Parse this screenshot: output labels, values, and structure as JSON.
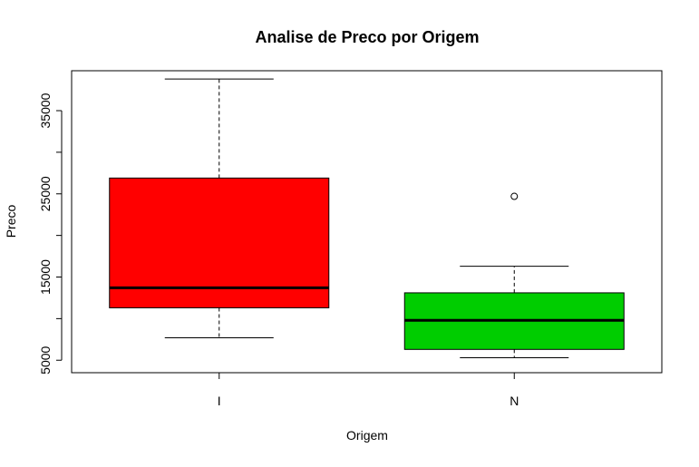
{
  "chart_data": {
    "type": "box",
    "title": "Analise de Preco por Origem",
    "xlabel": "Origem",
    "ylabel": "Preco",
    "ylim": [
      3500,
      39800
    ],
    "y_ticks": [
      5000,
      10000,
      15000,
      20000,
      25000,
      30000,
      35000
    ],
    "y_tick_labels": [
      "5000",
      "",
      "15000",
      "",
      "25000",
      "",
      "35000"
    ],
    "grid": false,
    "legend": "none",
    "categories": [
      "I",
      "N"
    ],
    "series": [
      {
        "category": "I",
        "color": "#ff0000",
        "whisker_low": 7700,
        "q1": 11300,
        "median": 13700,
        "q3": 26900,
        "whisker_high": 38800,
        "outliers": []
      },
      {
        "category": "N",
        "color": "#00cd00",
        "whisker_low": 5300,
        "q1": 6300,
        "median": 9800,
        "q3": 13100,
        "whisker_high": 16300,
        "outliers": [
          24700
        ]
      }
    ]
  }
}
